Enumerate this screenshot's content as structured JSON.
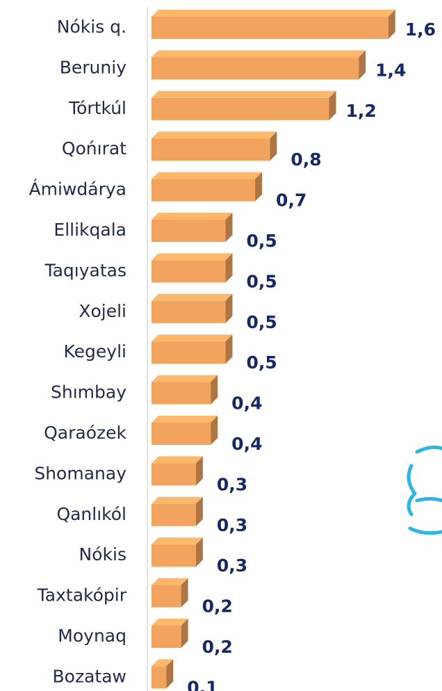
{
  "chart_data": {
    "type": "bar3d_horizontal",
    "categories": [
      "Nókis q.",
      "Beruniy",
      "Tórtkúl",
      "Qońırat",
      "Ámiwdárya",
      "Ellikqala",
      "Taqıyatas",
      "Xojeli",
      "Kegeyli",
      "Shımbay",
      "Qaraózek",
      "Shomanay",
      "Qanlıkól",
      "Nókis",
      "Taxtakópir",
      "Moynaq",
      "Bozataw"
    ],
    "values": [
      1.6,
      1.4,
      1.2,
      0.8,
      0.7,
      0.5,
      0.5,
      0.5,
      0.5,
      0.4,
      0.4,
      0.3,
      0.3,
      0.3,
      0.2,
      0.2,
      0.1
    ],
    "value_labels": [
      "1,6",
      "1,4",
      "1,2",
      "0,8",
      "0,7",
      "0,5",
      "0,5",
      "0,5",
      "0,5",
      "0,4",
      "0,4",
      "0,3",
      "0,3",
      "0,3",
      "0,2",
      "0,2",
      "0,1"
    ],
    "color": "#f2a35e",
    "xlim": [
      0,
      1.7
    ]
  }
}
